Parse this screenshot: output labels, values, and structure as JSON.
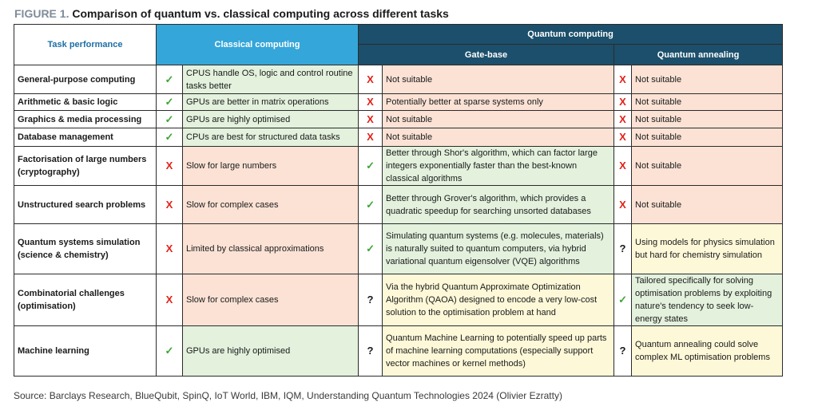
{
  "figure": {
    "label": "FIGURE 1.",
    "title": "Comparison of quantum vs. classical computing across different tasks"
  },
  "headers": {
    "task": "Task performance",
    "classical": "Classical computing",
    "quantum": "Quantum computing",
    "gate": "Gate-base",
    "annealing": "Quantum annealing"
  },
  "status_colors": {
    "yes": "#e3f1dd",
    "no": "#fbe2d5",
    "maybe": "#fdf8d8"
  },
  "rows": [
    {
      "task": "General-purpose computing",
      "classical": {
        "status": "yes",
        "icon": "✓",
        "text": "CPUS handle OS, logic and control routine tasks better"
      },
      "gate": {
        "status": "no",
        "icon": "X",
        "text": "Not suitable"
      },
      "annealing": {
        "status": "no",
        "icon": "X",
        "text": "Not suitable"
      }
    },
    {
      "task": "Arithmetic & basic logic",
      "classical": {
        "status": "yes",
        "icon": "✓",
        "text": "GPUs are better in matrix operations"
      },
      "gate": {
        "status": "no",
        "icon": "X",
        "text": "Potentially better at sparse systems only"
      },
      "annealing": {
        "status": "no",
        "icon": "X",
        "text": "Not suitable"
      }
    },
    {
      "task": "Graphics & media processing",
      "classical": {
        "status": "yes",
        "icon": "✓",
        "text": "GPUs are highly optimised"
      },
      "gate": {
        "status": "no",
        "icon": "X",
        "text": "Not suitable"
      },
      "annealing": {
        "status": "no",
        "icon": "X",
        "text": "Not suitable"
      }
    },
    {
      "task": "Database management",
      "classical": {
        "status": "yes",
        "icon": "✓",
        "text": "CPUs are best for structured data tasks"
      },
      "gate": {
        "status": "no",
        "icon": "X",
        "text": "Not suitable"
      },
      "annealing": {
        "status": "no",
        "icon": "X",
        "text": "Not suitable"
      }
    },
    {
      "task": "Factorisation of large numbers (cryptography)",
      "classical": {
        "status": "no",
        "icon": "X",
        "text": "Slow for large numbers"
      },
      "gate": {
        "status": "yes",
        "icon": "✓",
        "text": "Better through Shor's algorithm, which can factor large integers exponentially faster than the best-known classical algorithms"
      },
      "annealing": {
        "status": "no",
        "icon": "X",
        "text": "Not suitable"
      }
    },
    {
      "task": "Unstructured search problems",
      "classical": {
        "status": "no",
        "icon": "X",
        "text": "Slow for complex cases"
      },
      "gate": {
        "status": "yes",
        "icon": "✓",
        "text": "Better through Grover's algorithm, which provides a quadratic speedup for searching unsorted databases"
      },
      "annealing": {
        "status": "no",
        "icon": "X",
        "text": "Not suitable"
      }
    },
    {
      "task": "Quantum systems simulation (science & chemistry)",
      "classical": {
        "status": "no",
        "icon": "X",
        "text": "Limited by classical approximations"
      },
      "gate": {
        "status": "yes",
        "icon": "✓",
        "text": "Simulating quantum systems (e.g. molecules, materials) is naturally suited to quantum computers, via hybrid variational quantum eigensolver (VQE) algorithms"
      },
      "annealing": {
        "status": "maybe",
        "icon": "?",
        "text": "Using models for physics simulation but hard for chemistry simulation"
      }
    },
    {
      "task": "Combinatorial challenges (optimisation)",
      "classical": {
        "status": "no",
        "icon": "X",
        "text": "Slow for complex cases"
      },
      "gate": {
        "status": "maybe",
        "icon": "?",
        "text": "Via the hybrid Quantum Approximate Optimization Algorithm (QAOA) designed to encode a very low-cost solution to the optimisation problem at hand"
      },
      "annealing": {
        "status": "yes",
        "icon": "✓",
        "text": "Tailored specifically for solving optimisation problems by exploiting nature's tendency to seek low-energy states"
      }
    },
    {
      "task": "Machine learning",
      "classical": {
        "status": "yes",
        "icon": "✓",
        "text": "GPUs are highly optimised"
      },
      "gate": {
        "status": "maybe",
        "icon": "?",
        "text": "Quantum Machine Learning to potentially speed up parts of machine learning computations (especially support vector machines or kernel methods)"
      },
      "annealing": {
        "status": "maybe",
        "icon": "?",
        "text": "Quantum annealing could solve complex ML optimisation problems"
      }
    }
  ],
  "source": "Source: Barclays Research, BlueQubit, SpinQ, IoT World, IBM, IQM, Understanding Quantum Technologies 2024 (Olivier Ezratty)"
}
